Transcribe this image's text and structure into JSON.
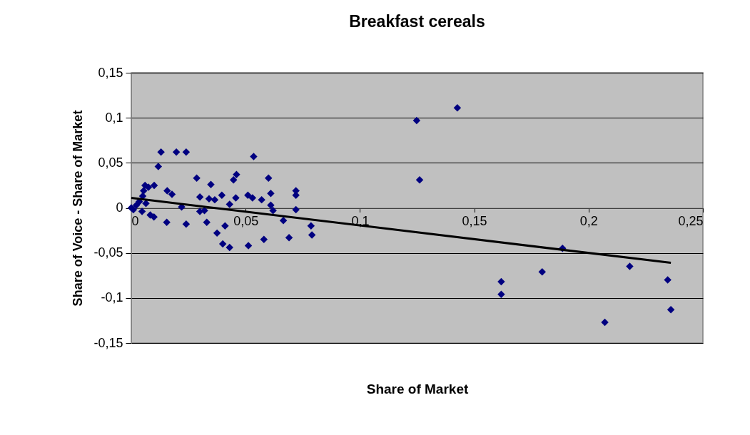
{
  "chart_data": {
    "type": "scatter",
    "title": "Breakfast cereals",
    "xlabel": "Share of Market",
    "ylabel": "Share of Voice - Share of Market",
    "xlim": [
      0,
      0.25
    ],
    "ylim": [
      -0.15,
      0.15
    ],
    "xticks": [
      {
        "value": 0,
        "label": "0"
      },
      {
        "value": 0.05,
        "label": "0,05"
      },
      {
        "value": 0.1,
        "label": "0,1"
      },
      {
        "value": 0.15,
        "label": "0,15"
      },
      {
        "value": 0.2,
        "label": "0,2"
      },
      {
        "value": 0.25,
        "label": "0,25"
      }
    ],
    "yticks": [
      {
        "value": -0.15,
        "label": "-0,15"
      },
      {
        "value": -0.1,
        "label": "-0,1"
      },
      {
        "value": -0.05,
        "label": "-0,05"
      },
      {
        "value": 0,
        "label": "0"
      },
      {
        "value": 0.05,
        "label": "0,05"
      },
      {
        "value": 0.1,
        "label": "0,1"
      },
      {
        "value": 0.15,
        "label": "0,15"
      }
    ],
    "grid": "y",
    "series": [
      {
        "marker": "diamond",
        "color": "#000080",
        "x": [
          0,
          0.0009,
          0.0035,
          0.005,
          0.006,
          0.0075,
          0.01,
          0.0047,
          0.0083,
          0.0099,
          0.0022,
          0.0064,
          0.0054,
          0.0118,
          0.013,
          0.0197,
          0.024,
          0.0157,
          0.0178,
          0.0155,
          0.022,
          0.024,
          0.0286,
          0.03,
          0.03,
          0.032,
          0.033,
          0.0348,
          0.034,
          0.0365,
          0.0375,
          0.0396,
          0.041,
          0.04,
          0.043,
          0.043,
          0.0447,
          0.046,
          0.0457,
          0.0535,
          0.051,
          0.053,
          0.0512,
          0.057,
          0.058,
          0.06,
          0.061,
          0.061,
          0.062,
          0.0665,
          0.069,
          0.072,
          0.072,
          0.072,
          0.0786,
          0.079,
          0.1248,
          0.1426,
          0.1261,
          0.1618,
          0.1618,
          0.1797,
          0.1886,
          0.2071,
          0.218,
          0.2346,
          0.236
        ],
        "values": [
          0,
          -0.002,
          0.007,
          0.013,
          0.025,
          0.023,
          0.025,
          -0.004,
          -0.008,
          -0.01,
          0.003,
          0.005,
          0.019,
          0.046,
          0.062,
          0.062,
          0.062,
          0.019,
          0.015,
          -0.016,
          0.001,
          -0.018,
          0.033,
          0.012,
          -0.004,
          -0.003,
          -0.016,
          0.026,
          0.01,
          0.009,
          -0.028,
          0.014,
          -0.02,
          -0.04,
          -0.044,
          0.004,
          0.031,
          0.037,
          0.011,
          0.057,
          0.014,
          0.011,
          -0.042,
          0.009,
          -0.035,
          0.033,
          0.016,
          0.003,
          -0.003,
          -0.014,
          -0.033,
          0.019,
          0.014,
          -0.002,
          -0.02,
          -0.03,
          0.097,
          0.111,
          0.031,
          -0.082,
          -0.096,
          -0.071,
          -0.045,
          -0.127,
          -0.065,
          -0.08,
          -0.113
        ]
      },
      {
        "type": "line",
        "color": "#000000",
        "x": [
          0,
          0.236
        ],
        "values": [
          0.011,
          -0.061
        ]
      }
    ]
  }
}
